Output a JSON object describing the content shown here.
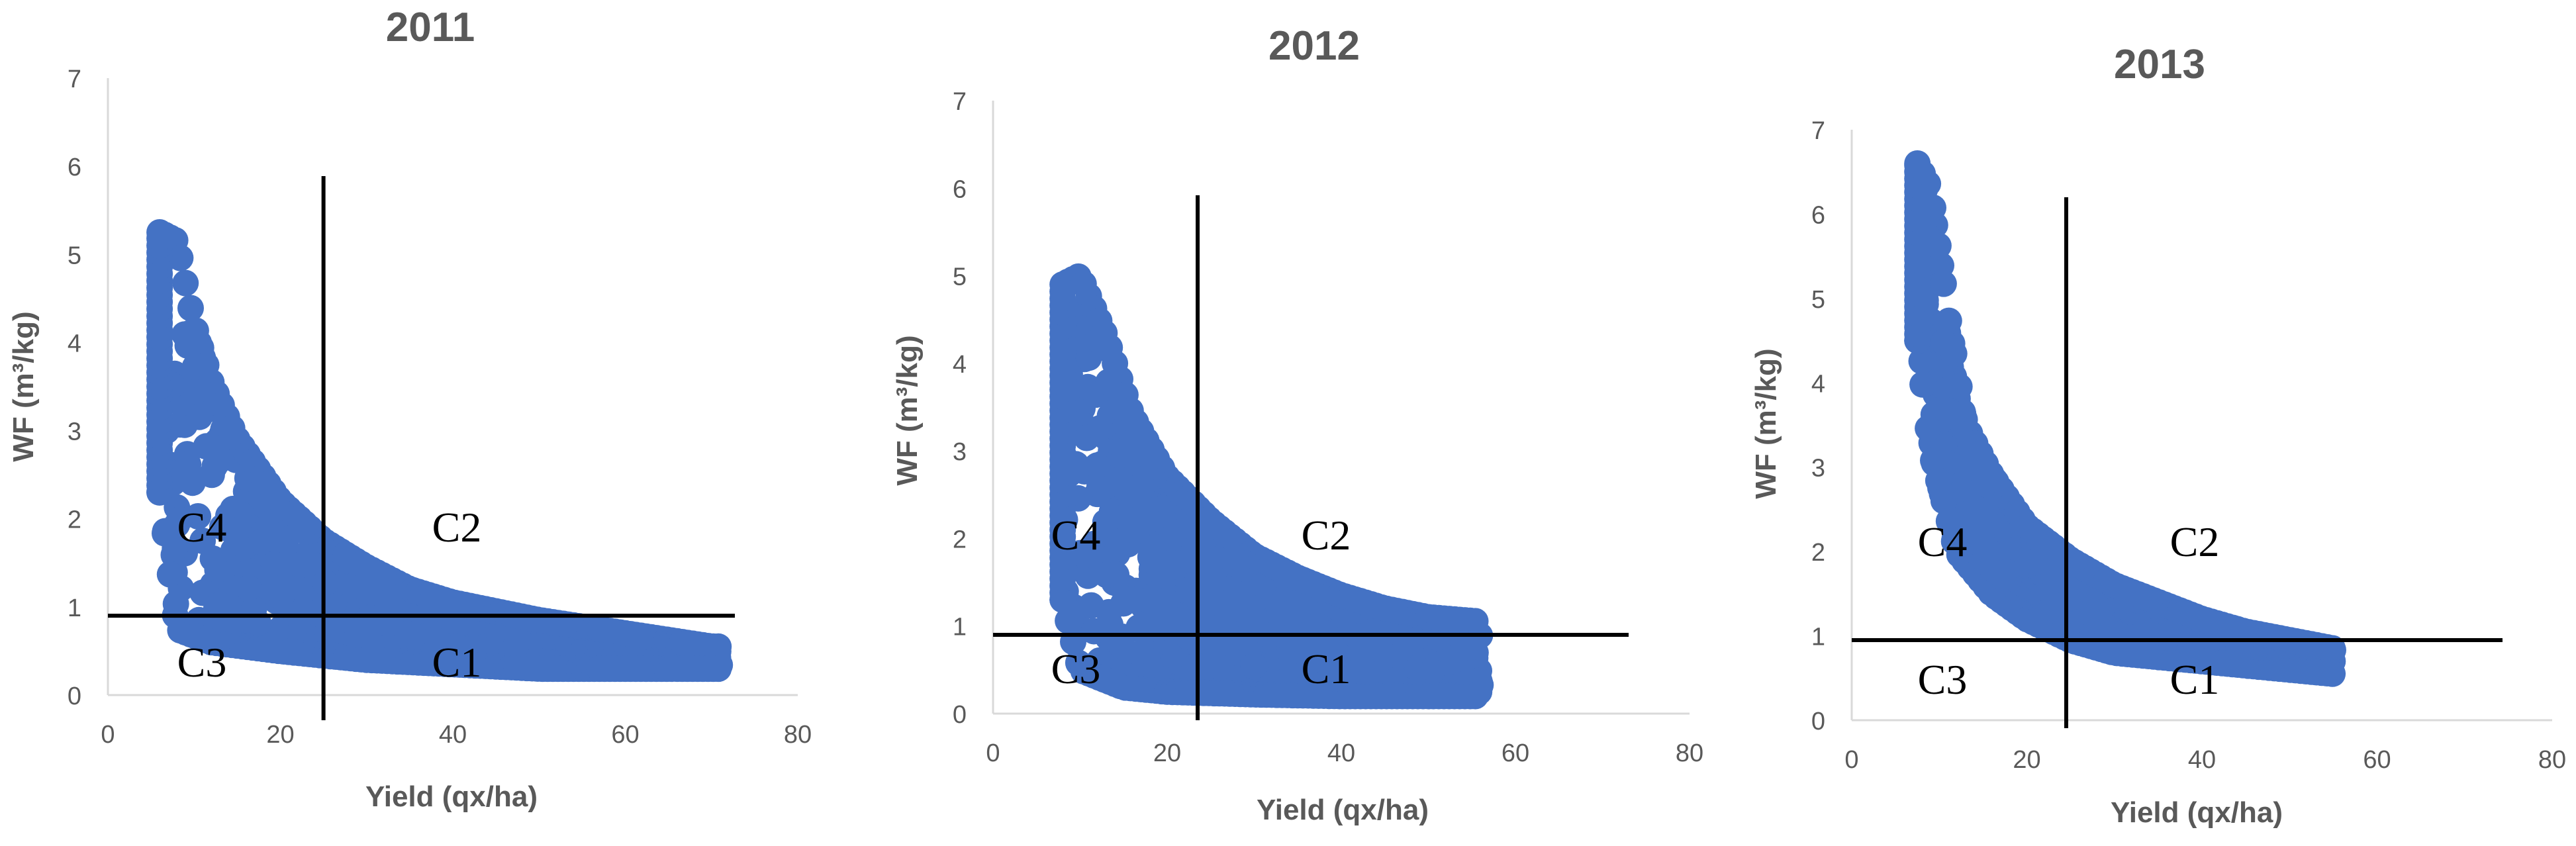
{
  "chart_data": [
    {
      "type": "scatter",
      "title": "2011",
      "xlabel": "Yield (qx/ha)",
      "ylabel": "WF (m³/kg)",
      "xlim": [
        0,
        80
      ],
      "ylim": [
        0,
        7
      ],
      "xticks": [
        "0",
        "20",
        "40",
        "60",
        "80"
      ],
      "yticks": [
        "0",
        "1",
        "2",
        "3",
        "4",
        "5",
        "6",
        "7"
      ],
      "marker_color": "#4472C4",
      "grid": false,
      "threshold_x": 25,
      "threshold_y": 0.9,
      "quadrants": [
        "C1",
        "C2",
        "C3",
        "C4"
      ],
      "envelope": {
        "x_range": [
          6,
          71
        ],
        "upper": [
          [
            6,
            5.25
          ],
          [
            8,
            5.15
          ],
          [
            10,
            4.2
          ],
          [
            12,
            3.55
          ],
          [
            15,
            2.9
          ],
          [
            20,
            2.2
          ],
          [
            25,
            1.75
          ],
          [
            30,
            1.45
          ],
          [
            35,
            1.2
          ],
          [
            40,
            1.05
          ],
          [
            50,
            0.85
          ],
          [
            60,
            0.7
          ],
          [
            70,
            0.55
          ]
        ],
        "lower": [
          [
            6,
            2.3
          ],
          [
            8,
            0.75
          ],
          [
            12,
            0.6
          ],
          [
            20,
            0.5
          ],
          [
            30,
            0.4
          ],
          [
            40,
            0.35
          ],
          [
            50,
            0.3
          ],
          [
            60,
            0.3
          ],
          [
            71,
            0.3
          ]
        ]
      }
    },
    {
      "type": "scatter",
      "title": "2012",
      "xlabel": "Yield (qx/ha)",
      "ylabel": "WF (m³/kg)",
      "xlim": [
        0,
        80
      ],
      "ylim": [
        0,
        7
      ],
      "xticks": [
        "0",
        "20",
        "40",
        "60",
        "80"
      ],
      "yticks": [
        "0",
        "1",
        "2",
        "3",
        "4",
        "5",
        "6",
        "7"
      ],
      "marker_color": "#4472C4",
      "grid": false,
      "threshold_x": 23.5,
      "threshold_y": 0.9,
      "quadrants": [
        "C1",
        "C2",
        "C3",
        "C4"
      ],
      "envelope": {
        "x_range": [
          8,
          56
        ],
        "upper": [
          [
            8,
            4.9
          ],
          [
            10,
            5.0
          ],
          [
            13,
            4.3
          ],
          [
            16,
            3.4
          ],
          [
            20,
            2.7
          ],
          [
            25,
            2.2
          ],
          [
            30,
            1.8
          ],
          [
            35,
            1.55
          ],
          [
            40,
            1.35
          ],
          [
            45,
            1.2
          ],
          [
            50,
            1.1
          ],
          [
            56,
            1.05
          ]
        ],
        "lower": [
          [
            8,
            1.3
          ],
          [
            10,
            0.5
          ],
          [
            15,
            0.3
          ],
          [
            20,
            0.25
          ],
          [
            30,
            0.22
          ],
          [
            40,
            0.2
          ],
          [
            50,
            0.2
          ],
          [
            56,
            0.2
          ]
        ]
      }
    },
    {
      "type": "scatter",
      "title": "2013",
      "xlabel": "Yield (qx/ha)",
      "ylabel": "WF (m³/kg)",
      "xlim": [
        0,
        80
      ],
      "ylim": [
        0,
        7
      ],
      "xticks": [
        "0",
        "20",
        "40",
        "60",
        "80"
      ],
      "yticks": [
        "0",
        "1",
        "2",
        "3",
        "4",
        "5",
        "6",
        "7"
      ],
      "marker_color": "#4472C4",
      "grid": false,
      "threshold_x": 24.5,
      "threshold_y": 0.95,
      "quadrants": [
        "C1",
        "C2",
        "C3",
        "C4"
      ],
      "envelope": {
        "x_range": [
          7.5,
          55
        ],
        "upper": [
          [
            7.5,
            6.6
          ],
          [
            9,
            6.3
          ],
          [
            11,
            4.8
          ],
          [
            13,
            3.5
          ],
          [
            16,
            2.9
          ],
          [
            20,
            2.3
          ],
          [
            25,
            1.9
          ],
          [
            30,
            1.6
          ],
          [
            35,
            1.4
          ],
          [
            40,
            1.2
          ],
          [
            45,
            1.05
          ],
          [
            50,
            0.95
          ],
          [
            55,
            0.85
          ]
        ],
        "lower": [
          [
            7.5,
            4.5
          ],
          [
            9,
            3.2
          ],
          [
            12,
            2.0
          ],
          [
            16,
            1.5
          ],
          [
            20,
            1.2
          ],
          [
            25,
            0.95
          ],
          [
            30,
            0.8
          ],
          [
            40,
            0.7
          ],
          [
            50,
            0.6
          ],
          [
            55,
            0.55
          ]
        ]
      }
    }
  ]
}
